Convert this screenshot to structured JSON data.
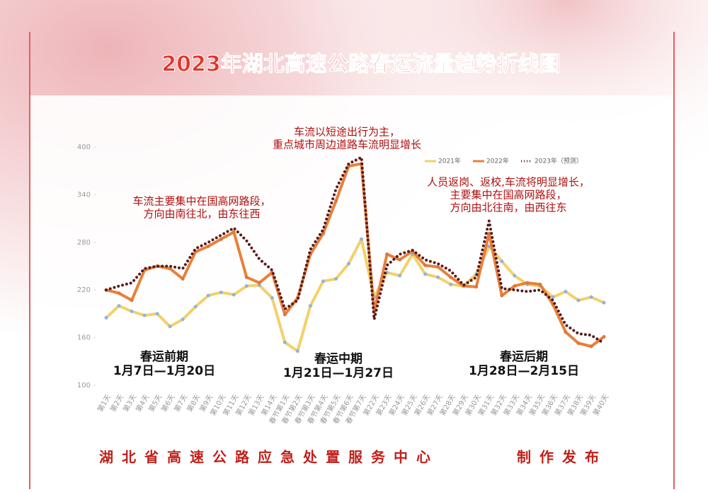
{
  "chart_data": {
    "type": "line",
    "title": "2023年湖北高速公路春运流量趋势折线图",
    "categories": [
      "第1天",
      "第2天",
      "第3天",
      "第4天",
      "第5天",
      "第6天",
      "第7天",
      "第8天",
      "第9天",
      "第10天",
      "第11天",
      "第12天",
      "第13天",
      "第14天",
      "春节第1天",
      "春节第2天",
      "春节第3天",
      "春节第4天",
      "春节第5天",
      "春节第6天",
      "春节第7天",
      "第22天",
      "第23天",
      "第24天",
      "第25天",
      "第26天",
      "第27天",
      "第28天",
      "第29天",
      "第30天",
      "第31天",
      "第32天",
      "第33天",
      "第34天",
      "第35天",
      "第36天",
      "第37天",
      "第38天",
      "第39天",
      "第40天"
    ],
    "series": [
      {
        "name": "2021年",
        "color": "#f3d068",
        "style": "solid",
        "values": [
          185,
          200,
          193,
          188,
          190,
          174,
          183,
          199,
          213,
          217,
          214,
          225,
          226,
          210,
          154,
          143,
          200,
          231,
          234,
          253,
          284,
          211,
          242,
          238,
          265,
          240,
          236,
          227,
          225,
          240,
          275,
          256,
          238,
          227,
          225,
          211,
          218,
          207,
          211,
          204
        ]
      },
      {
        "name": "2022年",
        "color": "#e8803a",
        "style": "solid",
        "values": [
          220,
          216,
          207,
          245,
          250,
          247,
          234,
          268,
          275,
          284,
          293,
          236,
          229,
          242,
          189,
          210,
          265,
          291,
          332,
          376,
          379,
          193,
          265,
          258,
          269,
          251,
          249,
          236,
          225,
          224,
          291,
          213,
          225,
          229,
          227,
          202,
          167,
          153,
          149,
          161
        ]
      },
      {
        "name": "2023年（预测）",
        "color": "#5a1a1a",
        "style": "dotted",
        "values": [
          220,
          225,
          229,
          247,
          250,
          250,
          247,
          272,
          280,
          289,
          298,
          282,
          259,
          245,
          196,
          207,
          271,
          296,
          347,
          379,
          387,
          183,
          251,
          265,
          270,
          258,
          253,
          244,
          226,
          236,
          307,
          222,
          220,
          218,
          220,
          207,
          176,
          165,
          163,
          153
        ]
      }
    ],
    "ylim": [
      100,
      400
    ],
    "yticks": [
      100,
      160,
      220,
      280,
      340,
      400
    ],
    "legend": "upper right",
    "annotations": [
      {
        "lines": [
          "车流以短途出行为主，",
          "重点城市周边道路车流明显增长"
        ]
      },
      {
        "lines": [
          "车流主要集中在国高网路段，",
          "方向由南往北，由东往西"
        ]
      },
      {
        "lines": [
          "人员返岗、返校,车流将明显增长，",
          "主要集中在国高网路段，",
          "方向由北往南，由西往东"
        ]
      }
    ],
    "phases": [
      {
        "name": "春运前期",
        "dates": "1月7日—1月20日"
      },
      {
        "name": "春运中期",
        "dates": "1月21日—1月27日"
      },
      {
        "name": "春运后期",
        "dates": "1月28日—2月15日"
      }
    ],
    "footer": {
      "org": "湖北省高速公路应急处置服务中心",
      "action": "制作发布"
    }
  }
}
